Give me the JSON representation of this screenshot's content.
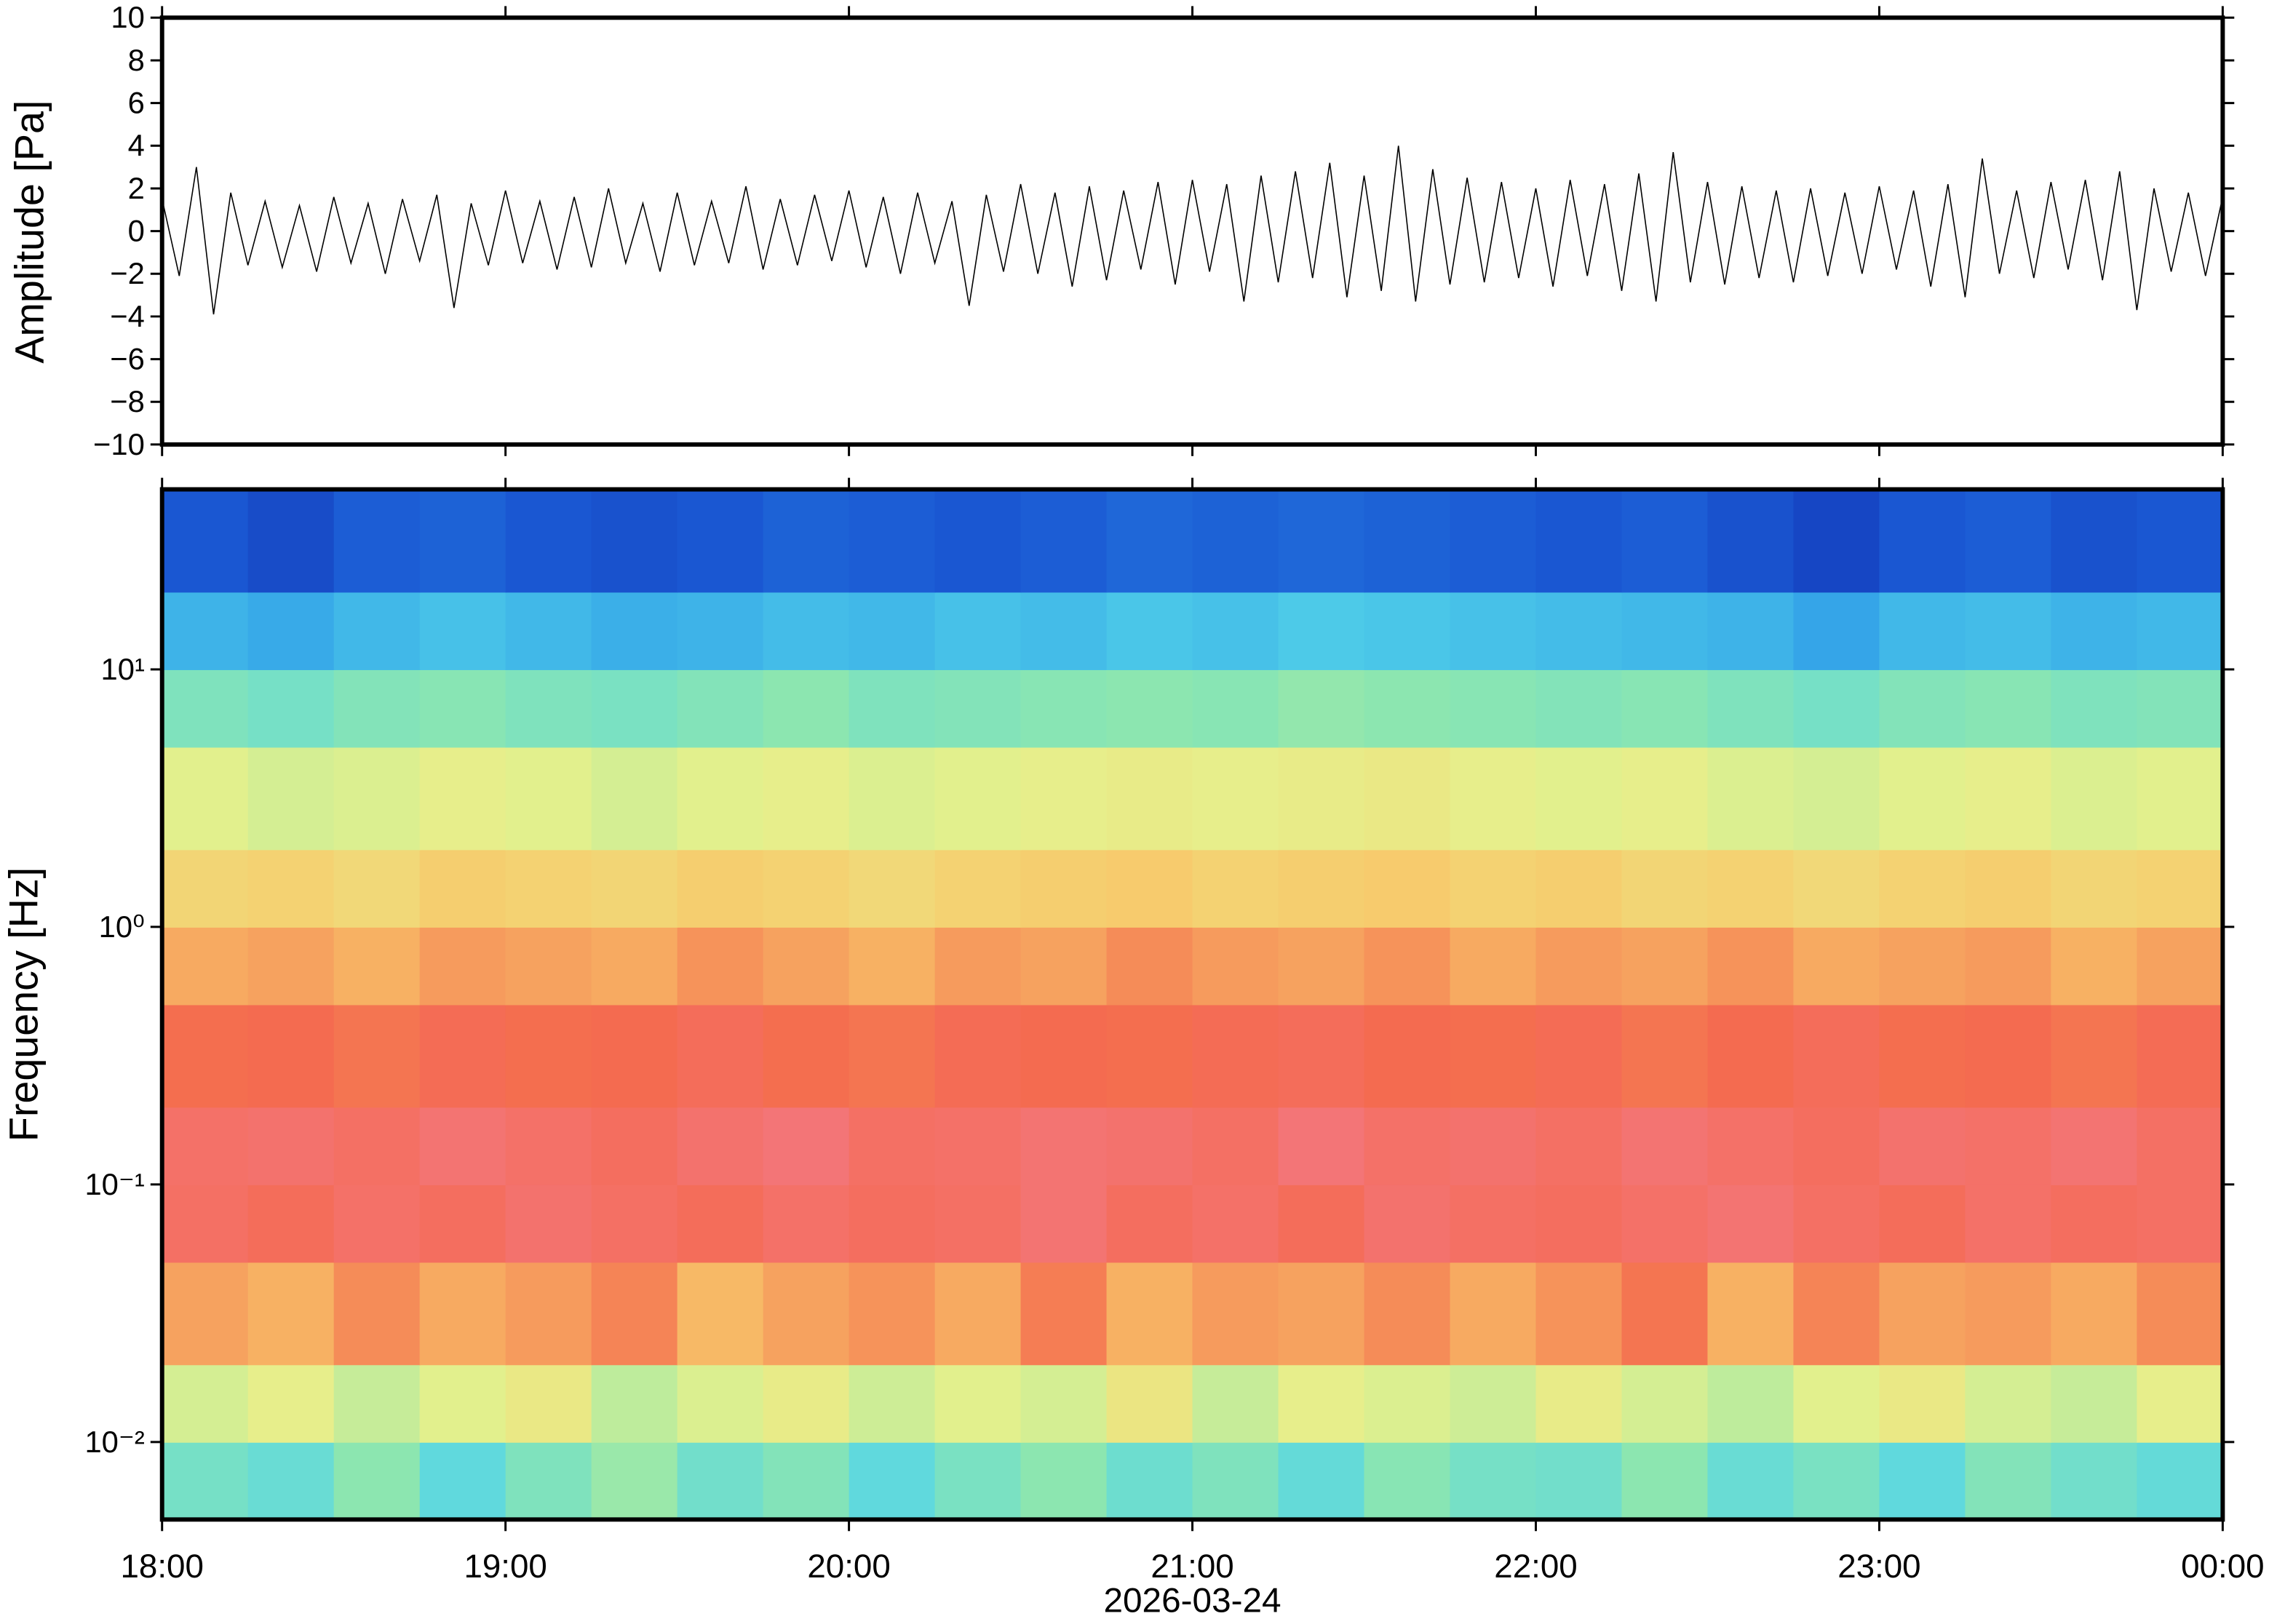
{
  "chart_data": [
    {
      "type": "line",
      "ylabel": "Amplitude [Pa]",
      "color": "#000000",
      "xlim": [
        18,
        24
      ],
      "xticks": [
        18,
        19,
        20,
        21,
        22,
        23,
        24
      ],
      "ylim": [
        -10,
        10
      ],
      "yticks": [
        {
          "value": -10,
          "label": "−10"
        },
        {
          "value": -8,
          "label": "−8"
        },
        {
          "value": -6,
          "label": "−6"
        },
        {
          "value": -4,
          "label": "−4"
        },
        {
          "value": -2,
          "label": "−2"
        },
        0,
        2,
        4,
        6,
        8,
        10
      ],
      "x": [
        18,
        18.05,
        18.1,
        18.15,
        18.2,
        18.25,
        18.3,
        18.35,
        18.4,
        18.45,
        18.5,
        18.55,
        18.6,
        18.65,
        18.7,
        18.75,
        18.8,
        18.85,
        18.9,
        18.95,
        19,
        19.05,
        19.1,
        19.15,
        19.2,
        19.25,
        19.3,
        19.35,
        19.4,
        19.45,
        19.5,
        19.55,
        19.6,
        19.65,
        19.7,
        19.75,
        19.8,
        19.85,
        19.9,
        19.95,
        20,
        20.05,
        20.1,
        20.15,
        20.2,
        20.25,
        20.3,
        20.35,
        20.4,
        20.45,
        20.5,
        20.55,
        20.6,
        20.65,
        20.7,
        20.75,
        20.8,
        20.85,
        20.9,
        20.95,
        21,
        21.05,
        21.1,
        21.15,
        21.2,
        21.25,
        21.3,
        21.35,
        21.4,
        21.45,
        21.5,
        21.55,
        21.6,
        21.65,
        21.7,
        21.75,
        21.8,
        21.85,
        21.9,
        21.95,
        22,
        22.05,
        22.1,
        22.15,
        22.2,
        22.25,
        22.3,
        22.35,
        22.4,
        22.45,
        22.5,
        22.55,
        22.6,
        22.65,
        22.7,
        22.75,
        22.8,
        22.85,
        22.9,
        22.95,
        23,
        23.05,
        23.1,
        23.15,
        23.2,
        23.25,
        23.3,
        23.35,
        23.4,
        23.45,
        23.5,
        23.55,
        23.6,
        23.65,
        23.7,
        23.75,
        23.8,
        23.85,
        23.9,
        23.95,
        24
      ],
      "values": [
        1.5,
        -2.1,
        3.0,
        -3.9,
        1.8,
        -1.6,
        1.4,
        -1.7,
        1.2,
        -1.9,
        1.6,
        -1.5,
        1.3,
        -2.0,
        1.5,
        -1.4,
        1.7,
        -3.6,
        1.3,
        -1.6,
        1.9,
        -1.5,
        1.4,
        -1.8,
        1.6,
        -1.7,
        2.0,
        -1.5,
        1.3,
        -1.9,
        1.8,
        -1.6,
        1.4,
        -1.5,
        2.1,
        -1.8,
        1.5,
        -1.6,
        1.7,
        -1.4,
        1.9,
        -1.7,
        1.6,
        -2.0,
        1.8,
        -1.5,
        1.4,
        -3.5,
        1.7,
        -1.9,
        2.2,
        -2.0,
        1.8,
        -2.6,
        2.1,
        -2.3,
        1.9,
        -1.8,
        2.3,
        -2.5,
        2.4,
        -1.9,
        2.2,
        -3.3,
        2.6,
        -2.4,
        2.8,
        -2.2,
        3.2,
        -3.1,
        2.6,
        -2.8,
        4.0,
        -3.3,
        2.9,
        -2.5,
        2.5,
        -2.4,
        2.3,
        -2.2,
        2.0,
        -2.6,
        2.4,
        -2.1,
        2.2,
        -2.8,
        2.7,
        -3.3,
        3.7,
        -2.4,
        2.3,
        -2.5,
        2.1,
        -2.2,
        1.9,
        -2.4,
        2.0,
        -2.1,
        1.8,
        -2.0,
        2.1,
        -1.8,
        1.9,
        -2.6,
        2.2,
        -3.1,
        3.4,
        -2.0,
        1.9,
        -2.2,
        2.3,
        -1.8,
        2.4,
        -2.3,
        2.8,
        -3.7,
        2.0,
        -1.9,
        1.8,
        -2.1,
        1.6
      ]
    },
    {
      "type": "heatmap",
      "ylabel": "Frequency [Hz]",
      "xlabel": "2026-03-24",
      "ylog": true,
      "xlim": [
        18,
        24
      ],
      "xticks": [
        {
          "value": 18,
          "label": "18:00"
        },
        {
          "value": 19,
          "label": "19:00"
        },
        {
          "value": 20,
          "label": "20:00"
        },
        {
          "value": 21,
          "label": "21:00"
        },
        {
          "value": 22,
          "label": "22:00"
        },
        {
          "value": 23,
          "label": "23:00"
        },
        {
          "value": 24,
          "label": "00:00"
        }
      ],
      "ylim": [
        0.005,
        50
      ],
      "yticks": [
        {
          "value": 0.01,
          "label": "10⁻²"
        },
        {
          "value": 0.1,
          "label": "10⁻¹"
        },
        {
          "value": 1,
          "label": "10⁰"
        },
        {
          "value": 10,
          "label": "10¹"
        }
      ],
      "zlim": [
        0,
        1
      ],
      "colormap": [
        "#0a149a",
        "#1b5ad4",
        "#2f9ce8",
        "#55d6e8",
        "#8ce6b0",
        "#e6f08c",
        "#f8c86a",
        "#f46a4e",
        "#f37a8a"
      ],
      "x_edges": [
        18,
        18.25,
        18.5,
        18.75,
        19,
        19.25,
        19.5,
        19.75,
        20,
        20.25,
        20.5,
        20.75,
        21,
        21.25,
        21.5,
        21.75,
        22,
        22.25,
        22.5,
        22.75,
        23,
        23.25,
        23.5,
        23.75,
        24
      ],
      "y_edges": [
        0.005,
        0.01,
        0.02,
        0.05,
        0.1,
        0.2,
        0.5,
        1,
        2,
        5,
        10,
        20,
        50
      ],
      "z": [
        [
          0.45,
          0.42,
          0.5,
          0.4,
          0.47,
          0.52,
          0.44,
          0.48,
          0.4,
          0.46,
          0.5,
          0.43,
          0.47,
          0.41,
          0.49,
          0.45,
          0.44,
          0.5,
          0.42,
          0.46,
          0.4,
          0.48,
          0.44,
          0.41
        ],
        [
          0.6,
          0.63,
          0.58,
          0.62,
          0.65,
          0.57,
          0.61,
          0.64,
          0.59,
          0.62,
          0.6,
          0.66,
          0.58,
          0.63,
          0.61,
          0.59,
          0.64,
          0.6,
          0.57,
          0.62,
          0.65,
          0.6,
          0.58,
          0.63
        ],
        [
          0.8,
          0.78,
          0.83,
          0.79,
          0.81,
          0.84,
          0.77,
          0.8,
          0.82,
          0.79,
          0.85,
          0.78,
          0.81,
          0.8,
          0.83,
          0.79,
          0.82,
          0.86,
          0.78,
          0.84,
          0.8,
          0.81,
          0.79,
          0.83
        ],
        [
          0.92,
          0.9,
          0.93,
          0.91,
          0.94,
          0.92,
          0.9,
          0.93,
          0.91,
          0.92,
          0.95,
          0.91,
          0.93,
          0.9,
          0.94,
          0.92,
          0.91,
          0.93,
          0.95,
          0.92,
          0.9,
          0.93,
          0.91,
          0.92
        ],
        [
          0.93,
          0.94,
          0.92,
          0.95,
          0.93,
          0.91,
          0.94,
          0.96,
          0.92,
          0.93,
          0.95,
          0.94,
          0.92,
          0.96,
          0.93,
          0.94,
          0.92,
          0.95,
          0.93,
          0.91,
          0.94,
          0.93,
          0.95,
          0.92
        ],
        [
          0.87,
          0.88,
          0.86,
          0.89,
          0.87,
          0.88,
          0.9,
          0.87,
          0.86,
          0.89,
          0.88,
          0.87,
          0.89,
          0.9,
          0.88,
          0.87,
          0.89,
          0.86,
          0.88,
          0.9,
          0.87,
          0.88,
          0.86,
          0.89
        ],
        [
          0.79,
          0.8,
          0.78,
          0.81,
          0.8,
          0.79,
          0.82,
          0.8,
          0.78,
          0.81,
          0.8,
          0.83,
          0.81,
          0.8,
          0.82,
          0.79,
          0.81,
          0.8,
          0.82,
          0.79,
          0.8,
          0.81,
          0.78,
          0.8
        ],
        [
          0.71,
          0.72,
          0.7,
          0.73,
          0.72,
          0.71,
          0.73,
          0.72,
          0.7,
          0.72,
          0.73,
          0.74,
          0.72,
          0.73,
          0.74,
          0.72,
          0.73,
          0.71,
          0.72,
          0.7,
          0.72,
          0.73,
          0.71,
          0.72
        ],
        [
          0.62,
          0.6,
          0.61,
          0.63,
          0.62,
          0.6,
          0.62,
          0.63,
          0.61,
          0.62,
          0.63,
          0.64,
          0.63,
          0.64,
          0.65,
          0.63,
          0.62,
          0.63,
          0.61,
          0.6,
          0.62,
          0.63,
          0.61,
          0.62
        ],
        [
          0.47,
          0.45,
          0.48,
          0.49,
          0.47,
          0.46,
          0.48,
          0.5,
          0.47,
          0.48,
          0.49,
          0.5,
          0.49,
          0.51,
          0.5,
          0.49,
          0.48,
          0.49,
          0.47,
          0.45,
          0.48,
          0.49,
          0.47,
          0.48
        ],
        [
          0.3,
          0.28,
          0.31,
          0.33,
          0.31,
          0.29,
          0.3,
          0.32,
          0.31,
          0.33,
          0.32,
          0.34,
          0.33,
          0.35,
          0.34,
          0.33,
          0.32,
          0.31,
          0.3,
          0.27,
          0.31,
          0.32,
          0.3,
          0.31
        ],
        [
          0.12,
          0.1,
          0.13,
          0.14,
          0.12,
          0.11,
          0.12,
          0.14,
          0.13,
          0.12,
          0.13,
          0.15,
          0.14,
          0.15,
          0.14,
          0.13,
          0.12,
          0.13,
          0.11,
          0.09,
          0.12,
          0.13,
          0.11,
          0.12
        ]
      ]
    }
  ]
}
